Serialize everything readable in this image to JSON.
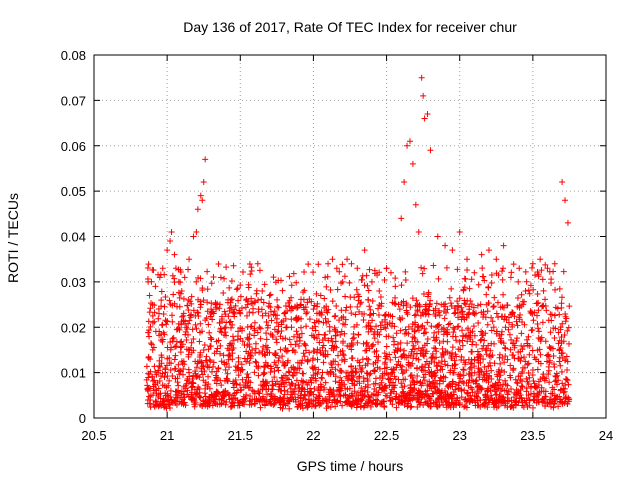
{
  "chart_data": {
    "type": "scatter",
    "title": "Day 136 of 2017, Rate Of TEC Index for receiver chur",
    "xlabel": "GPS time / hours",
    "ylabel": "ROTI / TECUs",
    "xlim": [
      20.5,
      24
    ],
    "ylim": [
      0,
      0.08
    ],
    "x_ticks": [
      "20.5",
      "21",
      "21.5",
      "22",
      "22.5",
      "23",
      "23.5",
      "24"
    ],
    "y_ticks": [
      "0",
      "0.01",
      "0.02",
      "0.03",
      "0.04",
      "0.05",
      "0.06",
      "0.07",
      "0.08"
    ],
    "grid": true,
    "marker": "+",
    "color": "#ff0000",
    "series": [
      {
        "x": [
          20.87,
          20.88,
          20.9,
          20.92,
          20.95,
          20.97,
          21.0,
          21.02,
          21.03,
          21.05,
          21.06,
          21.08,
          21.1,
          21.12,
          21.15,
          21.18,
          21.2,
          21.21,
          21.23,
          21.24,
          21.25,
          21.26,
          21.27,
          21.3,
          21.33,
          21.36,
          21.4,
          21.45,
          21.5,
          21.55,
          21.6,
          21.62,
          21.65,
          21.7,
          21.75,
          21.8,
          21.85,
          21.9,
          21.95,
          22.0,
          22.05,
          22.08,
          22.1,
          22.13,
          22.16,
          22.2,
          22.23,
          22.26,
          22.3,
          22.35,
          22.4,
          22.45,
          22.5,
          22.53,
          22.56,
          22.6,
          22.62,
          22.64,
          22.66,
          22.68,
          22.7,
          22.72,
          22.74,
          22.75,
          22.76,
          22.78,
          22.8,
          22.85,
          22.9,
          22.95,
          23.0,
          23.05,
          23.1,
          23.15,
          23.2,
          23.25,
          23.3,
          23.35,
          23.4,
          23.45,
          23.5,
          23.55,
          23.6,
          23.65,
          23.7,
          23.72,
          23.74
        ],
        "y": [
          0.03,
          0.027,
          0.025,
          0.029,
          0.031,
          0.033,
          0.037,
          0.039,
          0.041,
          0.036,
          0.033,
          0.03,
          0.028,
          0.031,
          0.035,
          0.04,
          0.041,
          0.046,
          0.049,
          0.048,
          0.052,
          0.057,
          0.022,
          0.024,
          0.025,
          0.021,
          0.02,
          0.018,
          0.023,
          0.025,
          0.021,
          0.034,
          0.028,
          0.027,
          0.021,
          0.023,
          0.02,
          0.022,
          0.023,
          0.024,
          0.027,
          0.031,
          0.034,
          0.035,
          0.033,
          0.03,
          0.035,
          0.034,
          0.033,
          0.037,
          0.03,
          0.028,
          0.033,
          0.032,
          0.029,
          0.044,
          0.052,
          0.06,
          0.061,
          0.056,
          0.047,
          0.041,
          0.075,
          0.071,
          0.066,
          0.067,
          0.059,
          0.04,
          0.038,
          0.037,
          0.041,
          0.035,
          0.032,
          0.036,
          0.037,
          0.035,
          0.038,
          0.031,
          0.03,
          0.028,
          0.034,
          0.035,
          0.033,
          0.034,
          0.052,
          0.048,
          0.043
        ],
        "baseline_range": [
          0.002,
          0.025
        ]
      }
    ]
  }
}
